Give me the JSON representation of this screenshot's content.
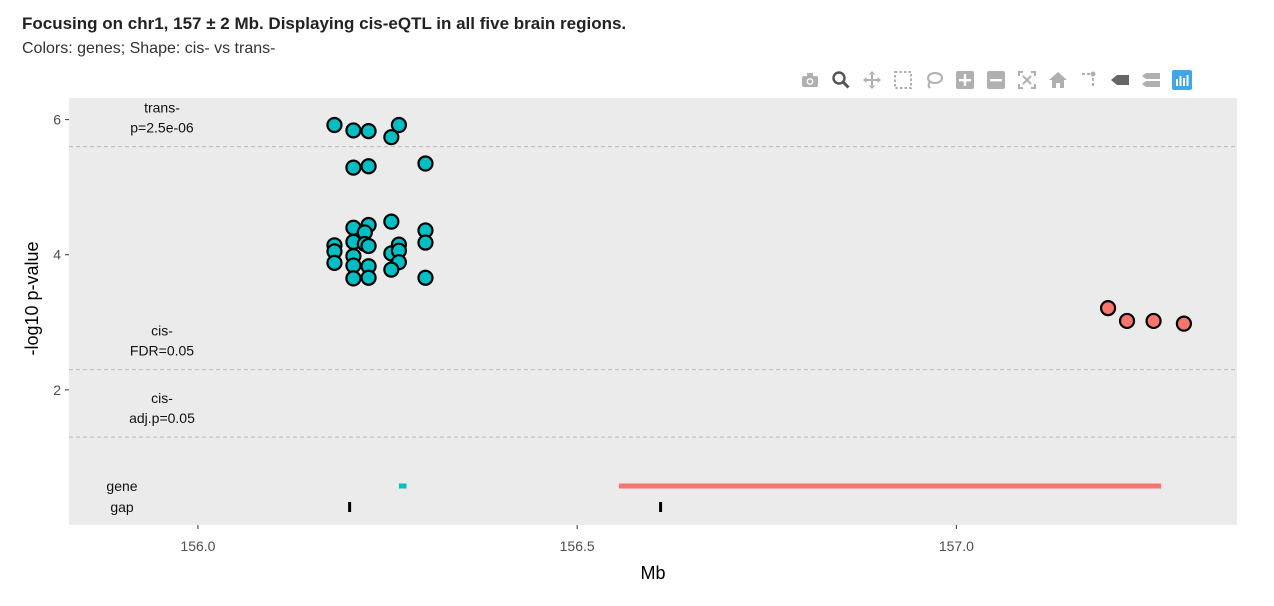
{
  "title": "Focusing on chr1, 157 ± 2 Mb. Displaying cis-eQTL in all five brain regions.",
  "subtitle": "Colors: genes; Shape: cis- vs trans-",
  "modebar": [
    {
      "name": "camera-icon",
      "icon": "camera"
    },
    {
      "name": "zoom-icon",
      "icon": "zoom"
    },
    {
      "name": "pan-icon",
      "icon": "pan"
    },
    {
      "name": "box-select-icon",
      "icon": "box-select"
    },
    {
      "name": "lasso-select-icon",
      "icon": "lasso"
    },
    {
      "name": "zoom-in-icon",
      "icon": "plus"
    },
    {
      "name": "zoom-out-icon",
      "icon": "minus"
    },
    {
      "name": "autoscale-icon",
      "icon": "autoscale"
    },
    {
      "name": "home-icon",
      "icon": "home"
    },
    {
      "name": "spike-lines-icon",
      "icon": "spike"
    },
    {
      "name": "hover-closest-icon",
      "icon": "tag"
    },
    {
      "name": "hover-compare-icon",
      "icon": "compare"
    },
    {
      "name": "plotly-logo-icon",
      "icon": "plotly"
    }
  ],
  "colors": {
    "panel_bg": "#ebebeb",
    "teal": "#00bfc4",
    "salmon": "#f8766d",
    "threshold_line": "#bbbbbb",
    "axis_text": "#4d4d4d"
  },
  "chart_data": {
    "type": "scatter",
    "xlabel": "Mb",
    "ylabel": "-log10 p-value",
    "xlim": [
      155.83,
      157.37
    ],
    "ylim": [
      0,
      6.32
    ],
    "x_ticks": [
      156.0,
      156.5,
      157.0
    ],
    "x_tick_labels": [
      "156.0",
      "156.5",
      "157.0"
    ],
    "y_ticks": [
      2,
      4,
      6
    ],
    "y_tick_labels": [
      "2",
      "4",
      "6"
    ],
    "grid": false,
    "thresholds": [
      {
        "label_line1": "trans-",
        "label_line2": "p=2.5e-06",
        "y": 5.6
      },
      {
        "label_line1": "cis-",
        "label_line2": "FDR=0.05",
        "y": 2.3
      },
      {
        "label_line1": "cis-",
        "label_line2": "adj.p=0.05",
        "y": 1.3
      }
    ],
    "series": [
      {
        "color": "teal",
        "points": [
          [
            156.18,
            5.92
          ],
          [
            156.205,
            5.84
          ],
          [
            156.225,
            5.83
          ],
          [
            156.265,
            5.92
          ],
          [
            156.255,
            5.74
          ],
          [
            156.205,
            5.29
          ],
          [
            156.225,
            5.31
          ],
          [
            156.3,
            5.35
          ],
          [
            156.255,
            4.49
          ],
          [
            156.225,
            4.44
          ],
          [
            156.205,
            4.4
          ],
          [
            156.3,
            4.36
          ],
          [
            156.22,
            4.33
          ],
          [
            156.18,
            4.14
          ],
          [
            156.205,
            4.19
          ],
          [
            156.22,
            4.16
          ],
          [
            156.225,
            4.13
          ],
          [
            156.265,
            4.15
          ],
          [
            156.3,
            4.18
          ],
          [
            156.18,
            4.05
          ],
          [
            156.205,
            3.98
          ],
          [
            156.255,
            4.02
          ],
          [
            156.265,
            4.06
          ],
          [
            156.18,
            3.88
          ],
          [
            156.205,
            3.84
          ],
          [
            156.225,
            3.83
          ],
          [
            156.265,
            3.89
          ],
          [
            156.255,
            3.78
          ],
          [
            156.205,
            3.65
          ],
          [
            156.225,
            3.66
          ],
          [
            156.3,
            3.66
          ]
        ]
      },
      {
        "color": "salmon",
        "points": [
          [
            157.2,
            3.21
          ],
          [
            157.225,
            3.02
          ],
          [
            157.26,
            3.02
          ],
          [
            157.3,
            2.98
          ]
        ]
      }
    ],
    "tracks": [
      {
        "label": "gene",
        "segments": [
          {
            "start": 156.265,
            "end": 156.275,
            "color": "teal"
          },
          {
            "start": 156.555,
            "end": 157.27,
            "color": "salmon"
          }
        ]
      },
      {
        "label": "gap",
        "marks": [
          156.2,
          156.61
        ]
      }
    ]
  }
}
